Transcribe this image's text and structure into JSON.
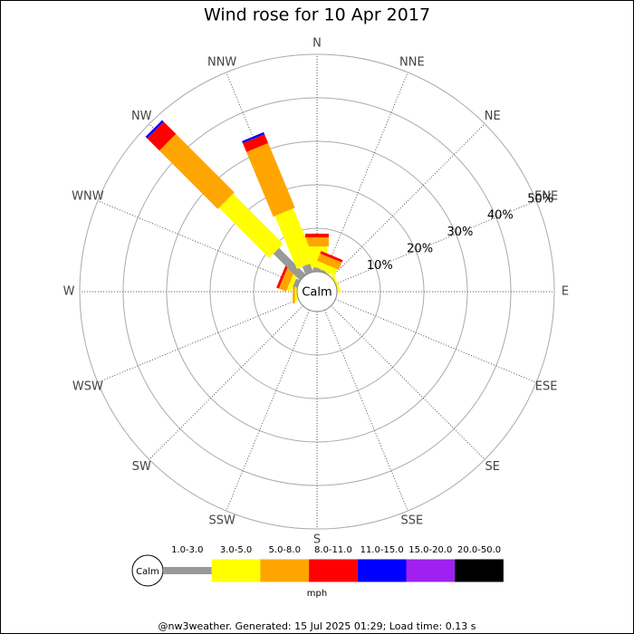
{
  "chart_data": {
    "type": "windrose",
    "title": "Wind rose for 10 Apr 2017",
    "categories": [
      "N",
      "NNE",
      "NE",
      "ENE",
      "E",
      "ESE",
      "SE",
      "SSE",
      "S",
      "SSW",
      "SW",
      "WSW",
      "W",
      "WNW",
      "NW",
      "NNW"
    ],
    "series": [
      {
        "name": "1.0-3.0",
        "color": "#999999",
        "values": [
          1,
          0.5,
          0,
          0,
          0,
          0,
          0,
          0,
          0,
          0,
          0,
          0,
          0,
          1,
          8.7,
          2
        ]
      },
      {
        "name": "3.0-5.0",
        "color": "#ffff00",
        "values": [
          4.8,
          1.5,
          0.3,
          0.5,
          0,
          0,
          0,
          0,
          0,
          0,
          0,
          0,
          0.5,
          1,
          16.3,
          13.2
        ]
      },
      {
        "name": "5.0-8.0",
        "color": "#ffa500",
        "values": [
          2.1,
          1.8,
          0,
          0,
          0,
          0,
          0,
          0,
          0,
          0,
          0,
          0,
          0.5,
          1.8,
          19,
          16.1
        ]
      },
      {
        "name": "8.0-11.0",
        "color": "#ff0000",
        "values": [
          0.85,
          0.6,
          0,
          0,
          0,
          0,
          0,
          0,
          0,
          0,
          0,
          0,
          0,
          0.6,
          4,
          2.2
        ]
      },
      {
        "name": "11.0-15.0",
        "color": "#0000ff",
        "values": [
          0,
          0,
          0,
          0,
          0,
          0,
          0,
          0,
          0,
          0,
          0,
          0,
          0,
          0,
          0.5,
          0.5
        ]
      },
      {
        "name": "15.0-20.0",
        "color": "#a020f0",
        "values": [
          0,
          0,
          0,
          0,
          0,
          0,
          0,
          0,
          0,
          0,
          0,
          0,
          0,
          0,
          0,
          0
        ]
      },
      {
        "name": "20.0-50.0",
        "color": "#000000",
        "values": [
          0,
          0,
          0,
          0,
          0,
          0,
          0,
          0,
          0,
          0,
          0,
          0,
          0,
          0,
          0,
          0
        ]
      }
    ],
    "ylim": [
      0,
      50
    ],
    "yticks": [
      {
        "value": 10,
        "label": "10%"
      },
      {
        "value": 20,
        "label": "20%"
      },
      {
        "value": 30,
        "label": "30%"
      },
      {
        "value": 40,
        "label": "40%"
      },
      {
        "value": 50,
        "label": "50%"
      }
    ],
    "calm_label": "Calm",
    "unit_label": "mph",
    "footer": "@nw3weather.  Generated: 15 Jul 2025 01:29; Load time: 0.13 s"
  }
}
